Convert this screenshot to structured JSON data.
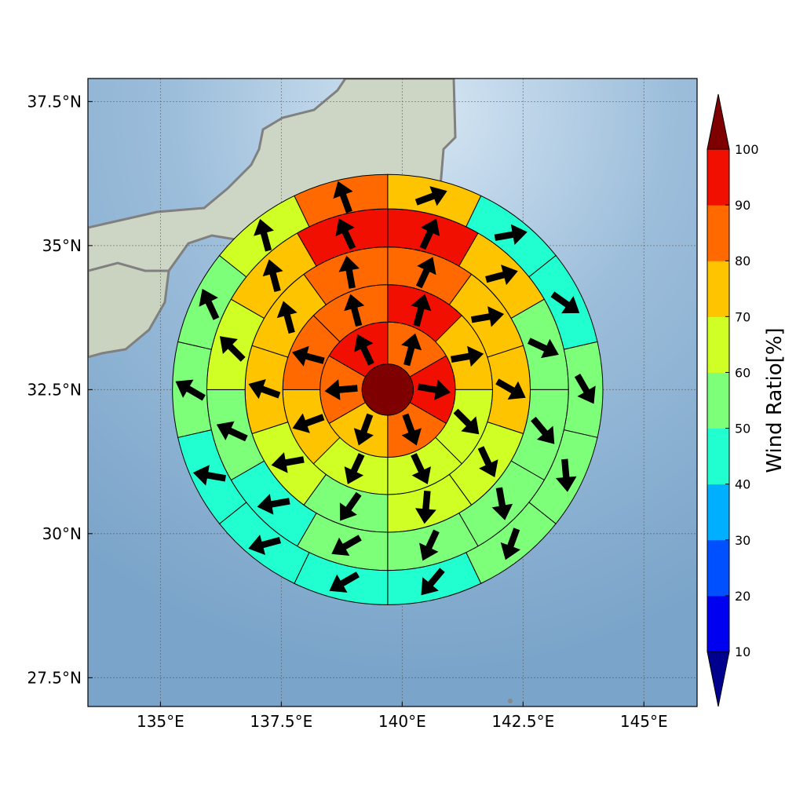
{
  "chart_data": {
    "type": "heatmap",
    "title": "",
    "xlabel": "",
    "ylabel": "",
    "map": {
      "lon_range": [
        133.5,
        146.1
      ],
      "lat_range": [
        27.0,
        37.9
      ],
      "lon_ticks": [
        135,
        137.5,
        140,
        142.5,
        145
      ],
      "lon_tick_labels": [
        "135°E",
        "137.5°E",
        "140°E",
        "142.5°E",
        "145°E"
      ],
      "lat_ticks": [
        27.5,
        30,
        32.5,
        35,
        37.5
      ],
      "lat_tick_labels": [
        "27.5°N",
        "30°N",
        "32.5°N",
        "35°N",
        "37.5°N"
      ],
      "grid": true,
      "land_color": "#cfd8c8",
      "ocean_color": "#82a9cc",
      "coast_color": "#808080"
    },
    "center": {
      "lon": 139.7,
      "lat": 32.5,
      "value": 100
    },
    "ring_radius_deg": [
      0.53,
      1.4,
      2.17,
      2.95,
      3.74,
      4.45
    ],
    "wind_direction_convention": "degrees clockwise from north, direction arrow points to",
    "rings": [
      {
        "ring": 1,
        "sectors": 6,
        "values": [
          85,
          95,
          85,
          75,
          85,
          95
        ],
        "directions": [
          15,
          100,
          160,
          200,
          265,
          335
        ]
      },
      {
        "ring": 2,
        "sectors": 8,
        "values": [
          95,
          75,
          65,
          65,
          65,
          75,
          85,
          85
        ],
        "directions": [
          15,
          80,
          135,
          155,
          205,
          250,
          285,
          345
        ]
      },
      {
        "ring": 3,
        "sectors": 10,
        "values": [
          85,
          75,
          75,
          65,
          65,
          55,
          65,
          75,
          75,
          85
        ],
        "directions": [
          25,
          80,
          120,
          155,
          185,
          215,
          260,
          290,
          345,
          350
        ]
      },
      {
        "ring": 4,
        "sectors": 12,
        "values": [
          95,
          75,
          55,
          55,
          55,
          55,
          55,
          45,
          55,
          65,
          75,
          95
        ],
        "directions": [
          25,
          75,
          115,
          140,
          170,
          205,
          240,
          260,
          295,
          315,
          345,
          335
        ]
      },
      {
        "ring": 5,
        "sectors": 14,
        "values": [
          75,
          45,
          45,
          55,
          55,
          55,
          45,
          45,
          45,
          45,
          55,
          55,
          65,
          85
        ],
        "directions": [
          70,
          80,
          125,
          150,
          175,
          200,
          220,
          240,
          255,
          280,
          300,
          335,
          345,
          340
        ]
      },
      {
        "ring": 6,
        "sectors": 16,
        "values": [
          85,
          75,
          45,
          35,
          45,
          45,
          45,
          45,
          35,
          35,
          45,
          55,
          55,
          65,
          75,
          85
        ],
        "directions": [
          60,
          75,
          80,
          100,
          140,
          165,
          185,
          205,
          245,
          255,
          265,
          295,
          310,
          335,
          345,
          10
        ]
      }
    ],
    "colorbar": {
      "label": "Wind Ratio[%]",
      "ticks": [
        10,
        20,
        30,
        40,
        50,
        60,
        70,
        80,
        90,
        100
      ],
      "tick_labels": [
        "10",
        "20",
        "30",
        "40",
        "50",
        "60",
        "70",
        "80",
        "90",
        "100"
      ],
      "range": [
        0,
        110
      ],
      "extend": "both",
      "levels": [
        {
          "min": 0,
          "max": 10,
          "color": "#00008f"
        },
        {
          "min": 10,
          "max": 20,
          "color": "#0000f0"
        },
        {
          "min": 20,
          "max": 30,
          "color": "#0050ff"
        },
        {
          "min": 30,
          "max": 40,
          "color": "#00b0ff"
        },
        {
          "min": 40,
          "max": 50,
          "color": "#21ffd0"
        },
        {
          "min": 50,
          "max": 60,
          "color": "#7dff7a"
        },
        {
          "min": 60,
          "max": 70,
          "color": "#cfff25"
        },
        {
          "min": 70,
          "max": 80,
          "color": "#ffc400"
        },
        {
          "min": 80,
          "max": 90,
          "color": "#ff6900"
        },
        {
          "min": 90,
          "max": 100,
          "color": "#f00f00"
        },
        {
          "min": 100,
          "max": 110,
          "color": "#7f0000"
        }
      ]
    }
  }
}
